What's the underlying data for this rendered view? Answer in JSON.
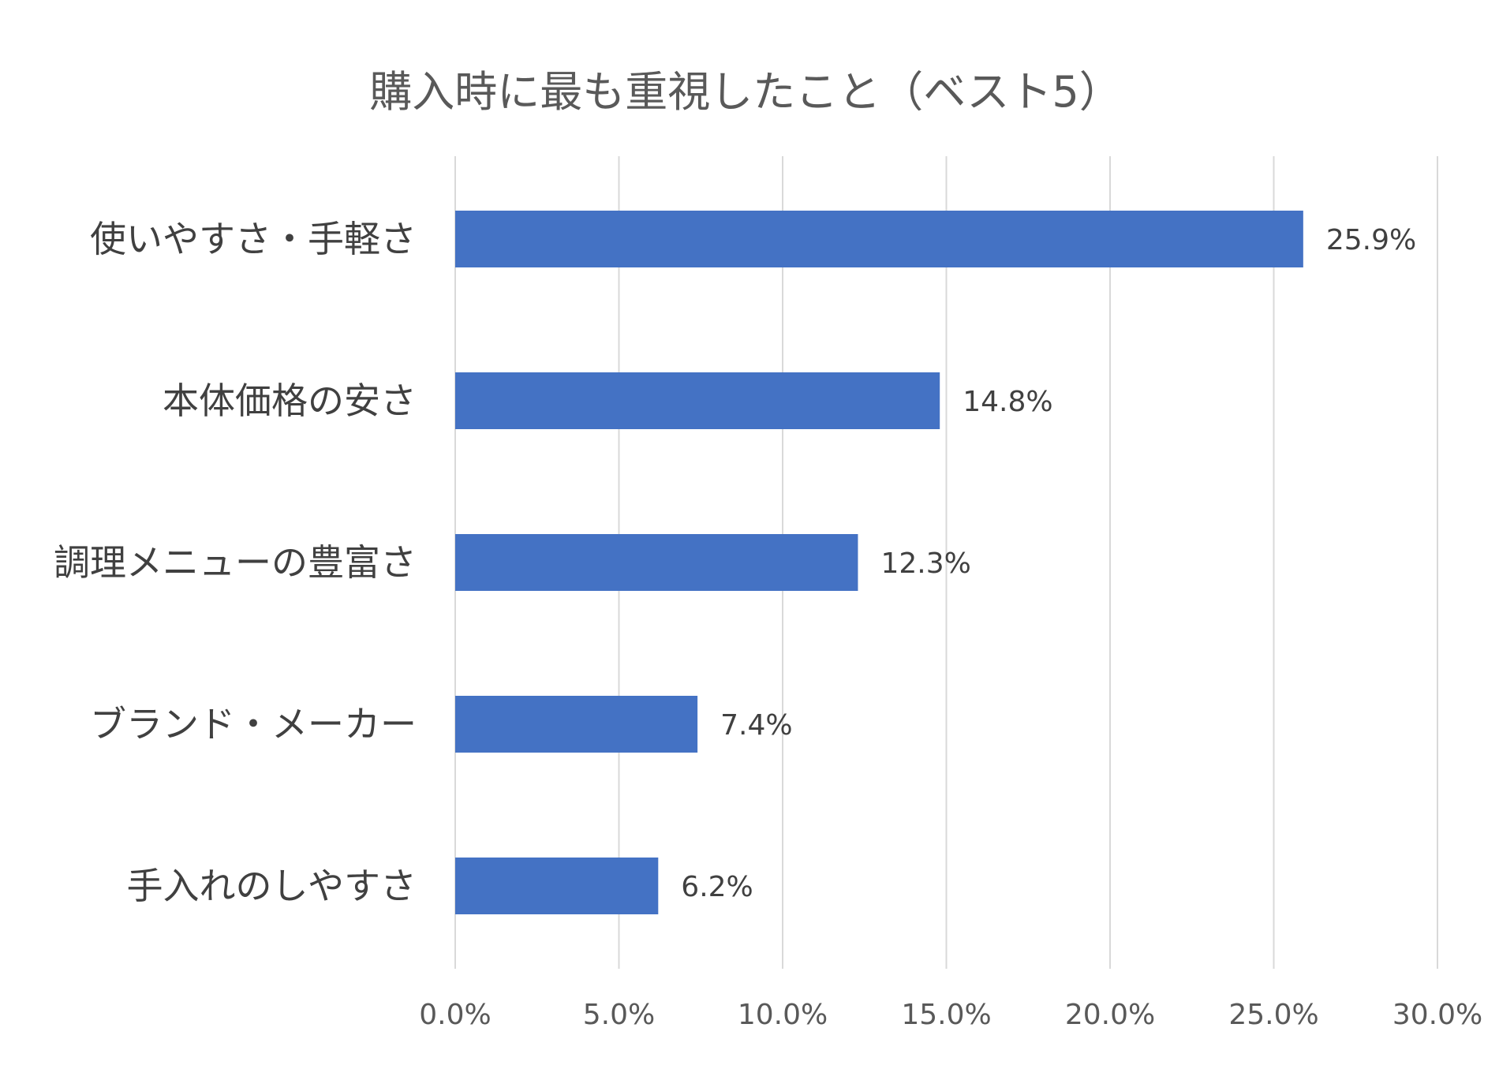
{
  "chart_data": {
    "type": "bar",
    "orientation": "horizontal",
    "title": "購入時に最も重視したこと（ベスト5）",
    "categories": [
      "使いやすさ・手軽さ",
      "本体価格の安さ",
      "調理メニューの豊富さ",
      "ブランド・メーカー",
      "手入れのしやすさ"
    ],
    "values": [
      25.9,
      14.8,
      12.3,
      7.4,
      6.2
    ],
    "value_labels": [
      "25.9%",
      "14.8%",
      "12.3%",
      "7.4%",
      "6.2%"
    ],
    "xlim": [
      0,
      30
    ],
    "x_ticks": [
      0,
      5,
      10,
      15,
      20,
      25,
      30
    ],
    "x_tick_labels": [
      "0.0%",
      "5.0%",
      "10.0%",
      "15.0%",
      "20.0%",
      "25.0%",
      "30.0%"
    ],
    "grid": true,
    "legend": "none",
    "bar_color": "#4472c4",
    "grid_color": "#d9d9d9"
  }
}
